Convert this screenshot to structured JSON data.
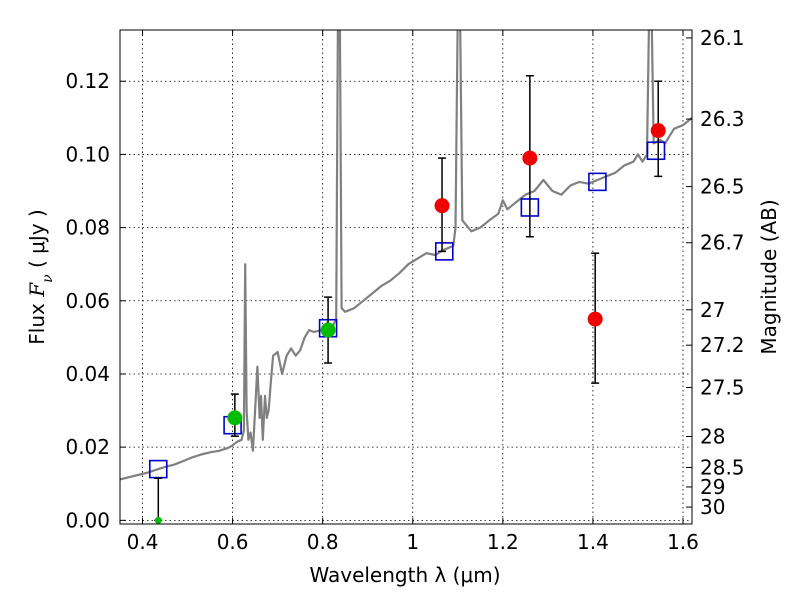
{
  "chart_data": {
    "type": "scatter",
    "xlabel": "Wavelength  λ (μm)",
    "ylabel": "Flux  F_ν  ( μJy )",
    "y2label": "Magnitude (AB)",
    "xlim": [
      0.35,
      1.62
    ],
    "ylim": [
      -0.001,
      0.134
    ],
    "grid": true,
    "x_ticks": [
      {
        "value": 0.4,
        "label": "0.4"
      },
      {
        "value": 0.6,
        "label": "0.6"
      },
      {
        "value": 0.8,
        "label": "0.8"
      },
      {
        "value": 1.0,
        "label": "1"
      },
      {
        "value": 1.2,
        "label": "1.2"
      },
      {
        "value": 1.4,
        "label": "1.4"
      },
      {
        "value": 1.6,
        "label": "1.6"
      }
    ],
    "y_ticks": [
      {
        "value": 0.0,
        "label": "0.00"
      },
      {
        "value": 0.02,
        "label": "0.02"
      },
      {
        "value": 0.04,
        "label": "0.04"
      },
      {
        "value": 0.06,
        "label": "0.06"
      },
      {
        "value": 0.08,
        "label": "0.08"
      },
      {
        "value": 0.1,
        "label": "0.10"
      },
      {
        "value": 0.12,
        "label": "0.12"
      }
    ],
    "y2_ticks": [
      {
        "mag": 26.1,
        "label": "26.1"
      },
      {
        "mag": 26.3,
        "label": "26.3"
      },
      {
        "mag": 26.5,
        "label": "26.5"
      },
      {
        "mag": 26.7,
        "label": "26.7"
      },
      {
        "mag": 27.0,
        "label": "27"
      },
      {
        "mag": 27.2,
        "label": "27.2"
      },
      {
        "mag": 27.5,
        "label": "27.5"
      },
      {
        "mag": 28.0,
        "label": "28"
      },
      {
        "mag": 28.5,
        "label": "28.5"
      },
      {
        "mag": 29.0,
        "label": "29"
      },
      {
        "mag": 30.0,
        "label": "30"
      }
    ],
    "colors": {
      "spectrum": "#808080",
      "model": "#0000cc",
      "observed_red": "#ee0000",
      "observed_green": "#00bb00",
      "errorbar": "#000000"
    },
    "spectrum": [
      [
        0.35,
        0.0112
      ],
      [
        0.37,
        0.0118
      ],
      [
        0.39,
        0.0124
      ],
      [
        0.41,
        0.013
      ],
      [
        0.43,
        0.0138
      ],
      [
        0.45,
        0.0146
      ],
      [
        0.47,
        0.0152
      ],
      [
        0.49,
        0.0162
      ],
      [
        0.51,
        0.0172
      ],
      [
        0.53,
        0.018
      ],
      [
        0.55,
        0.0186
      ],
      [
        0.57,
        0.019
      ],
      [
        0.59,
        0.0198
      ],
      [
        0.6,
        0.0205
      ],
      [
        0.61,
        0.0215
      ],
      [
        0.62,
        0.022
      ],
      [
        0.625,
        0.0246
      ],
      [
        0.628,
        0.07
      ],
      [
        0.631,
        0.03
      ],
      [
        0.635,
        0.022
      ],
      [
        0.64,
        0.024
      ],
      [
        0.645,
        0.019
      ],
      [
        0.65,
        0.03
      ],
      [
        0.655,
        0.042
      ],
      [
        0.66,
        0.028
      ],
      [
        0.663,
        0.034
      ],
      [
        0.667,
        0.022
      ],
      [
        0.672,
        0.034
      ],
      [
        0.676,
        0.028
      ],
      [
        0.68,
        0.03
      ],
      [
        0.685,
        0.038
      ],
      [
        0.69,
        0.045
      ],
      [
        0.7,
        0.046
      ],
      [
        0.71,
        0.04
      ],
      [
        0.72,
        0.045
      ],
      [
        0.73,
        0.047
      ],
      [
        0.74,
        0.045
      ],
      [
        0.75,
        0.0465
      ],
      [
        0.76,
        0.05
      ],
      [
        0.77,
        0.052
      ],
      [
        0.78,
        0.0515
      ],
      [
        0.8,
        0.052
      ],
      [
        0.81,
        0.054
      ],
      [
        0.82,
        0.0525
      ],
      [
        0.83,
        0.055
      ],
      [
        0.834,
        0.14
      ],
      [
        0.838,
        0.14
      ],
      [
        0.842,
        0.058
      ],
      [
        0.85,
        0.057
      ],
      [
        0.87,
        0.058
      ],
      [
        0.89,
        0.06
      ],
      [
        0.91,
        0.062
      ],
      [
        0.93,
        0.064
      ],
      [
        0.95,
        0.0655
      ],
      [
        0.97,
        0.0675
      ],
      [
        0.99,
        0.07
      ],
      [
        1.01,
        0.0715
      ],
      [
        1.03,
        0.073
      ],
      [
        1.05,
        0.0725
      ],
      [
        1.07,
        0.074
      ],
      [
        1.09,
        0.075
      ],
      [
        1.095,
        0.08
      ],
      [
        1.1,
        0.14
      ],
      [
        1.105,
        0.14
      ],
      [
        1.11,
        0.082
      ],
      [
        1.13,
        0.079
      ],
      [
        1.15,
        0.08
      ],
      [
        1.17,
        0.082
      ],
      [
        1.19,
        0.0838
      ],
      [
        1.2,
        0.0875
      ],
      [
        1.21,
        0.085
      ],
      [
        1.23,
        0.087
      ],
      [
        1.25,
        0.089
      ],
      [
        1.27,
        0.09
      ],
      [
        1.29,
        0.093
      ],
      [
        1.31,
        0.09
      ],
      [
        1.33,
        0.089
      ],
      [
        1.35,
        0.0915
      ],
      [
        1.37,
        0.0925
      ],
      [
        1.39,
        0.092
      ],
      [
        1.41,
        0.093
      ],
      [
        1.43,
        0.094
      ],
      [
        1.45,
        0.095
      ],
      [
        1.47,
        0.097
      ],
      [
        1.49,
        0.098
      ],
      [
        1.5,
        0.1
      ],
      [
        1.51,
        0.098
      ],
      [
        1.52,
        0.1
      ],
      [
        1.525,
        0.14
      ],
      [
        1.53,
        0.14
      ],
      [
        1.535,
        0.103
      ],
      [
        1.55,
        0.104
      ],
      [
        1.56,
        0.103
      ],
      [
        1.57,
        0.105
      ],
      [
        1.58,
        0.107
      ],
      [
        1.6,
        0.108
      ],
      [
        1.62,
        0.11
      ]
    ],
    "model_points": [
      {
        "x": 0.435,
        "y": 0.014
      },
      {
        "x": 0.6,
        "y": 0.026
      },
      {
        "x": 0.812,
        "y": 0.0525
      },
      {
        "x": 1.07,
        "y": 0.0735
      },
      {
        "x": 1.26,
        "y": 0.0855
      },
      {
        "x": 1.41,
        "y": 0.0925
      },
      {
        "x": 1.54,
        "y": 0.101
      }
    ],
    "observed": [
      {
        "x": 0.435,
        "y": 0.0,
        "err_low": 0.0,
        "err_high": 0.0115,
        "color": "green"
      },
      {
        "x": 0.605,
        "y": 0.028,
        "err_low": 0.005,
        "err_high": 0.0065,
        "color": "green"
      },
      {
        "x": 0.812,
        "y": 0.052,
        "err_low": 0.009,
        "err_high": 0.009,
        "color": "green"
      },
      {
        "x": 1.065,
        "y": 0.086,
        "err_low": 0.0125,
        "err_high": 0.013,
        "color": "red"
      },
      {
        "x": 1.26,
        "y": 0.099,
        "err_low": 0.0215,
        "err_high": 0.0225,
        "color": "red"
      },
      {
        "x": 1.405,
        "y": 0.055,
        "err_low": 0.0175,
        "err_high": 0.018,
        "color": "red"
      },
      {
        "x": 1.545,
        "y": 0.1065,
        "err_low": 0.0125,
        "err_high": 0.0135,
        "color": "red"
      }
    ]
  }
}
